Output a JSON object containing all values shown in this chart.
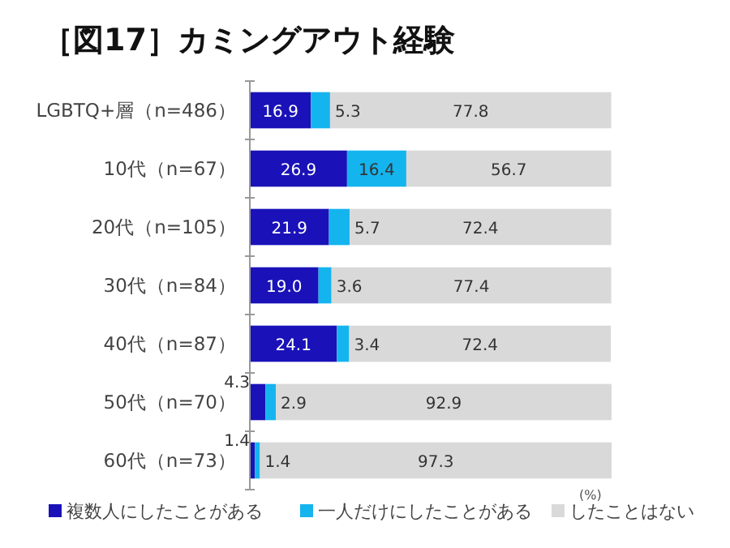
{
  "chart_data": {
    "type": "bar",
    "orientation": "horizontal",
    "stacked": true,
    "legend": "bottom",
    "grid": false,
    "title": "［図17］カミングアウト経験",
    "categories": [
      "LGBTQ+層（n=486）",
      "10代（n=67）",
      "20代（n=105）",
      "30代（n=84）",
      "40代（n=87）",
      "50代（n=70）",
      "60代（n=73）"
    ],
    "series": [
      {
        "name": "複数人にしたことがある",
        "color": "#1a12b8",
        "values": [
          16.9,
          26.9,
          21.9,
          19.0,
          24.1,
          4.3,
          1.4
        ],
        "value_labels": [
          "16.9",
          "26.9",
          "21.9",
          "19.0",
          "24.1",
          "4.3",
          "1.4"
        ]
      },
      {
        "name": "一人だけにしたことがある",
        "color": "#14b4ee",
        "values": [
          5.3,
          16.4,
          5.7,
          3.6,
          3.4,
          2.9,
          1.4
        ],
        "value_labels": [
          "5.3",
          "16.4",
          "5.7",
          "3.6",
          "3.4",
          "2.9",
          "1.4"
        ]
      },
      {
        "name": "したことはない",
        "color": "#d9d9d9",
        "values": [
          77.8,
          56.7,
          72.4,
          77.4,
          72.4,
          92.9,
          97.3
        ],
        "value_labels": [
          "77.8",
          "56.7",
          "72.4",
          "77.4",
          "72.4",
          "92.9",
          "97.3"
        ]
      }
    ],
    "annotations": [
      "(%)"
    ]
  }
}
